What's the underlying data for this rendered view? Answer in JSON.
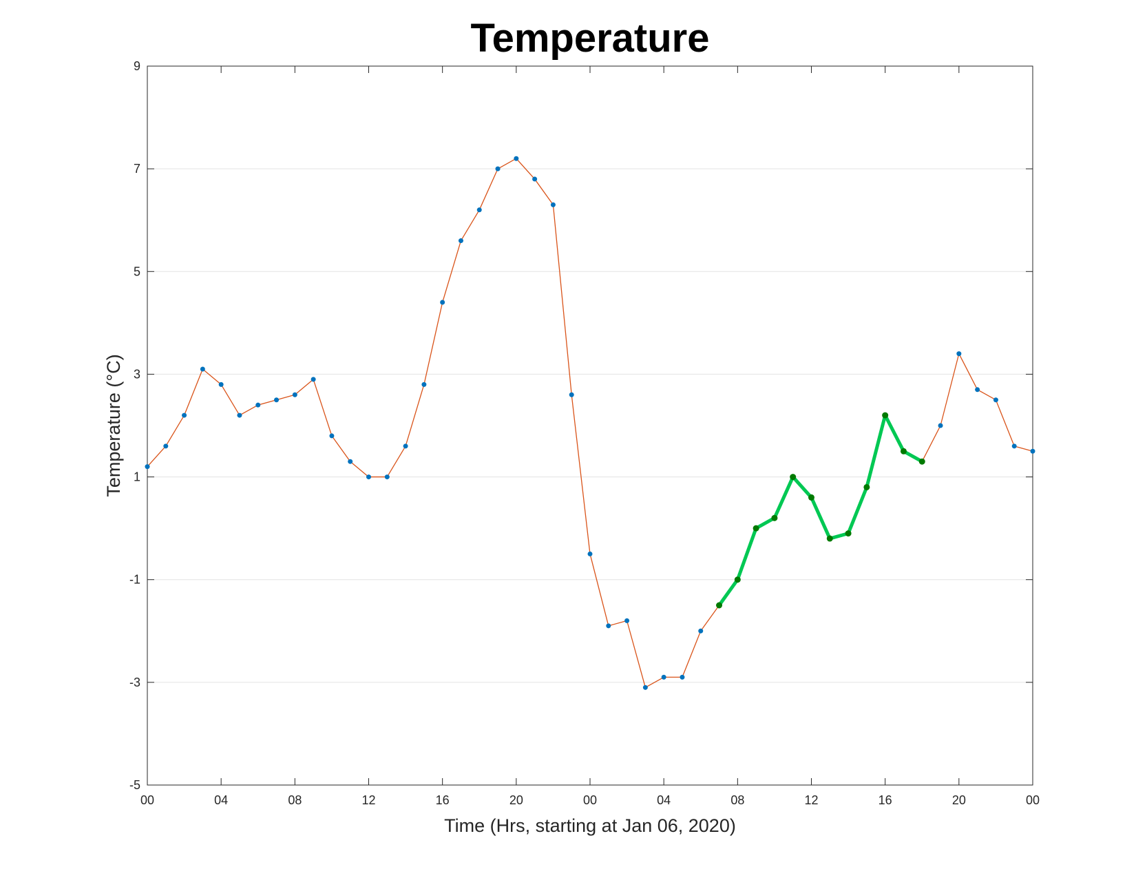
{
  "chart_data": {
    "type": "line",
    "title": "Temperature",
    "xlabel": "Time (Hrs, starting at Jan 06, 2020)",
    "ylabel": "Temperature (°C)",
    "x_unit": "hour",
    "x": [
      0,
      1,
      2,
      3,
      4,
      5,
      6,
      7,
      8,
      9,
      10,
      11,
      12,
      13,
      14,
      15,
      16,
      17,
      18,
      19,
      20,
      21,
      22,
      23,
      24,
      25,
      26,
      27,
      28,
      29,
      30,
      31,
      32,
      33,
      34,
      35,
      36,
      37,
      38,
      39,
      40,
      41,
      42,
      43,
      44,
      45,
      46,
      47,
      48
    ],
    "xlim": [
      0,
      48
    ],
    "ylim": [
      -5,
      9
    ],
    "x_ticks": [
      0,
      4,
      8,
      12,
      16,
      20,
      24,
      28,
      32,
      36,
      40,
      44,
      48
    ],
    "x_tick_labels": [
      "00",
      "04",
      "08",
      "12",
      "16",
      "20",
      "00",
      "04",
      "08",
      "12",
      "16",
      "20",
      "00"
    ],
    "y_ticks": [
      -5,
      -3,
      -1,
      1,
      3,
      5,
      7,
      9
    ],
    "y_tick_labels": [
      "-5",
      "-3",
      "-1",
      "1",
      "3",
      "5",
      "7",
      "9"
    ],
    "grid": "horizontal",
    "series": [
      {
        "color": "#D95319",
        "marker_color": "#0072BD",
        "values": [
          1.2,
          1.6,
          2.2,
          3.1,
          2.8,
          2.2,
          2.4,
          2.5,
          2.6,
          2.9,
          1.8,
          1.3,
          1.0,
          1.0,
          1.6,
          2.8,
          4.4,
          5.6,
          6.2,
          7.0,
          7.2,
          6.8,
          6.3,
          2.6,
          -0.5,
          -1.9,
          -1.8,
          -3.1,
          -2.9,
          -2.9,
          -2.0,
          -1.5,
          -1.0,
          0.0,
          0.2,
          1.0,
          0.6,
          -0.2,
          -0.1,
          0.8,
          2.2,
          1.5,
          1.3,
          2.0,
          3.4,
          2.7,
          2.5,
          1.6,
          1.5
        ]
      },
      {
        "color": "#00C853",
        "marker_color": "#007A00",
        "x": [
          31,
          32,
          33,
          34,
          35,
          36,
          37,
          38,
          39,
          40,
          41,
          42
        ],
        "values": [
          -1.5,
          -1.0,
          0.0,
          0.2,
          1.0,
          0.6,
          -0.2,
          -0.1,
          0.8,
          2.2,
          1.5,
          1.3
        ]
      }
    ]
  }
}
